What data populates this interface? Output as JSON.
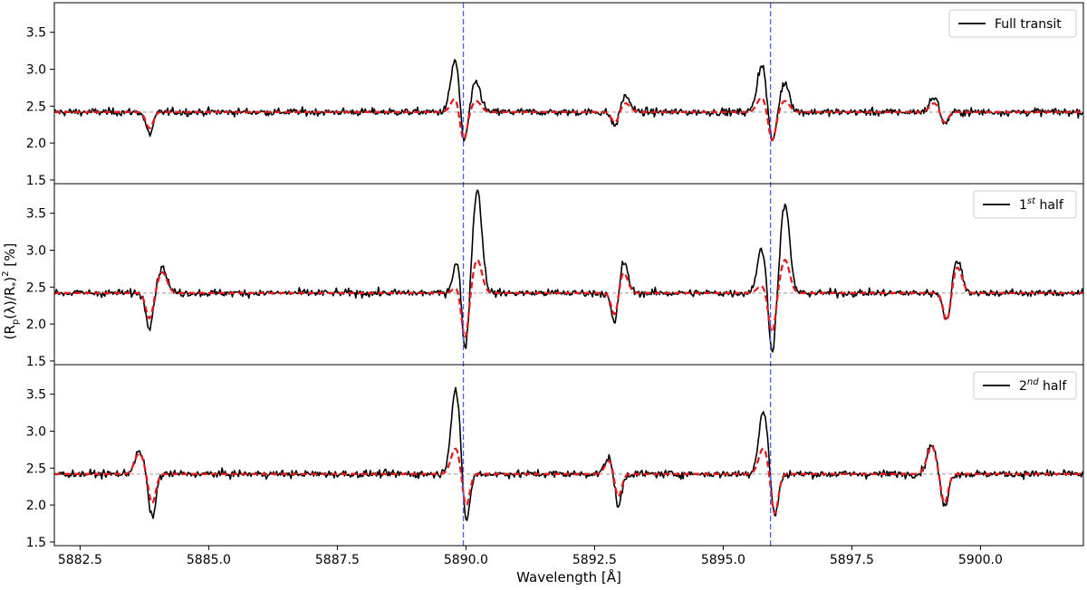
{
  "chart_data": {
    "type": "line",
    "xlabel": "Wavelength [Å]",
    "ylabel": "(R_p(λ)/R_*)² [%]",
    "xlim": [
      5882.0,
      5902.0
    ],
    "ylim": [
      1.45,
      3.9
    ],
    "x_ticks": [
      5882.5,
      5885.0,
      5887.5,
      5890.0,
      5892.5,
      5895.0,
      5897.5,
      5900.0
    ],
    "x_tick_labels": [
      "5882.5",
      "5885.0",
      "5887.5",
      "5890.0",
      "5892.5",
      "5895.0",
      "5897.5",
      "5900.0"
    ],
    "y_ticks": [
      1.5,
      2.0,
      2.5,
      3.0,
      3.5
    ],
    "y_tick_labels": [
      "1.5",
      "2.0",
      "2.5",
      "3.0",
      "3.5"
    ],
    "vlines": [
      5889.95,
      5895.92
    ],
    "baseline": 2.42,
    "colors": {
      "data": "#000000",
      "model": "#e41a1c",
      "vline": "#4a5ee8",
      "baseline": "#999999"
    },
    "legend_position": "top-right",
    "panels": [
      {
        "legend": {
          "label": "Full transit",
          "sup": "",
          "suffix": ""
        },
        "features": [
          {
            "x": 5883.85,
            "type": "abs",
            "depth": 0.3,
            "model": 0.22
          },
          {
            "x": 5889.8,
            "type": "emi",
            "depth": 0.75,
            "model": 0.2
          },
          {
            "x": 5889.95,
            "type": "abs",
            "depth": 0.55,
            "model": 0.42
          },
          {
            "x": 5890.2,
            "type": "emi",
            "depth": 0.4,
            "model": 0.15
          },
          {
            "x": 5892.9,
            "type": "abs",
            "depth": 0.2,
            "model": 0.15
          },
          {
            "x": 5893.1,
            "type": "emi",
            "depth": 0.22,
            "model": 0.12
          },
          {
            "x": 5895.75,
            "type": "emi",
            "depth": 0.65,
            "model": 0.2
          },
          {
            "x": 5895.95,
            "type": "abs",
            "depth": 0.45,
            "model": 0.4
          },
          {
            "x": 5896.2,
            "type": "emi",
            "depth": 0.4,
            "model": 0.15
          },
          {
            "x": 5899.1,
            "type": "emi",
            "depth": 0.2,
            "model": 0.12
          },
          {
            "x": 5899.3,
            "type": "abs",
            "depth": 0.18,
            "model": 0.15
          }
        ]
      },
      {
        "legend": {
          "label": "1",
          "sup": "st",
          "suffix": " half"
        },
        "features": [
          {
            "x": 5883.85,
            "type": "abs",
            "depth": 0.45,
            "model": 0.35
          },
          {
            "x": 5884.1,
            "type": "emi",
            "depth": 0.35,
            "model": 0.28
          },
          {
            "x": 5889.85,
            "type": "emi",
            "depth": 0.5,
            "model": 0.1
          },
          {
            "x": 5889.98,
            "type": "abs",
            "depth": 0.95,
            "model": 0.65
          },
          {
            "x": 5890.22,
            "type": "emi",
            "depth": 1.4,
            "model": 0.45
          },
          {
            "x": 5892.9,
            "type": "abs",
            "depth": 0.5,
            "model": 0.35
          },
          {
            "x": 5893.05,
            "type": "emi",
            "depth": 0.45,
            "model": 0.3
          },
          {
            "x": 5895.75,
            "type": "emi",
            "depth": 0.6,
            "model": 0.1
          },
          {
            "x": 5895.95,
            "type": "abs",
            "depth": 0.85,
            "model": 0.55
          },
          {
            "x": 5896.2,
            "type": "emi",
            "depth": 1.2,
            "model": 0.45
          },
          {
            "x": 5899.35,
            "type": "abs",
            "depth": 0.4,
            "model": 0.4
          },
          {
            "x": 5899.55,
            "type": "emi",
            "depth": 0.45,
            "model": 0.35
          }
        ]
      },
      {
        "legend": {
          "label": "2",
          "sup": "nd",
          "suffix": " half"
        },
        "features": [
          {
            "x": 5883.65,
            "type": "emi",
            "depth": 0.3,
            "model": 0.28
          },
          {
            "x": 5883.9,
            "type": "abs",
            "depth": 0.6,
            "model": 0.4
          },
          {
            "x": 5889.8,
            "type": "emi",
            "depth": 1.15,
            "model": 0.35
          },
          {
            "x": 5890.0,
            "type": "abs",
            "depth": 0.7,
            "model": 0.45
          },
          {
            "x": 5892.8,
            "type": "emi",
            "depth": 0.25,
            "model": 0.2
          },
          {
            "x": 5892.95,
            "type": "abs",
            "depth": 0.5,
            "model": 0.35
          },
          {
            "x": 5895.78,
            "type": "emi",
            "depth": 0.85,
            "model": 0.35
          },
          {
            "x": 5896.0,
            "type": "abs",
            "depth": 0.6,
            "model": 0.55
          },
          {
            "x": 5899.05,
            "type": "emi",
            "depth": 0.4,
            "model": 0.38
          },
          {
            "x": 5899.3,
            "type": "abs",
            "depth": 0.45,
            "model": 0.4
          }
        ]
      }
    ]
  }
}
